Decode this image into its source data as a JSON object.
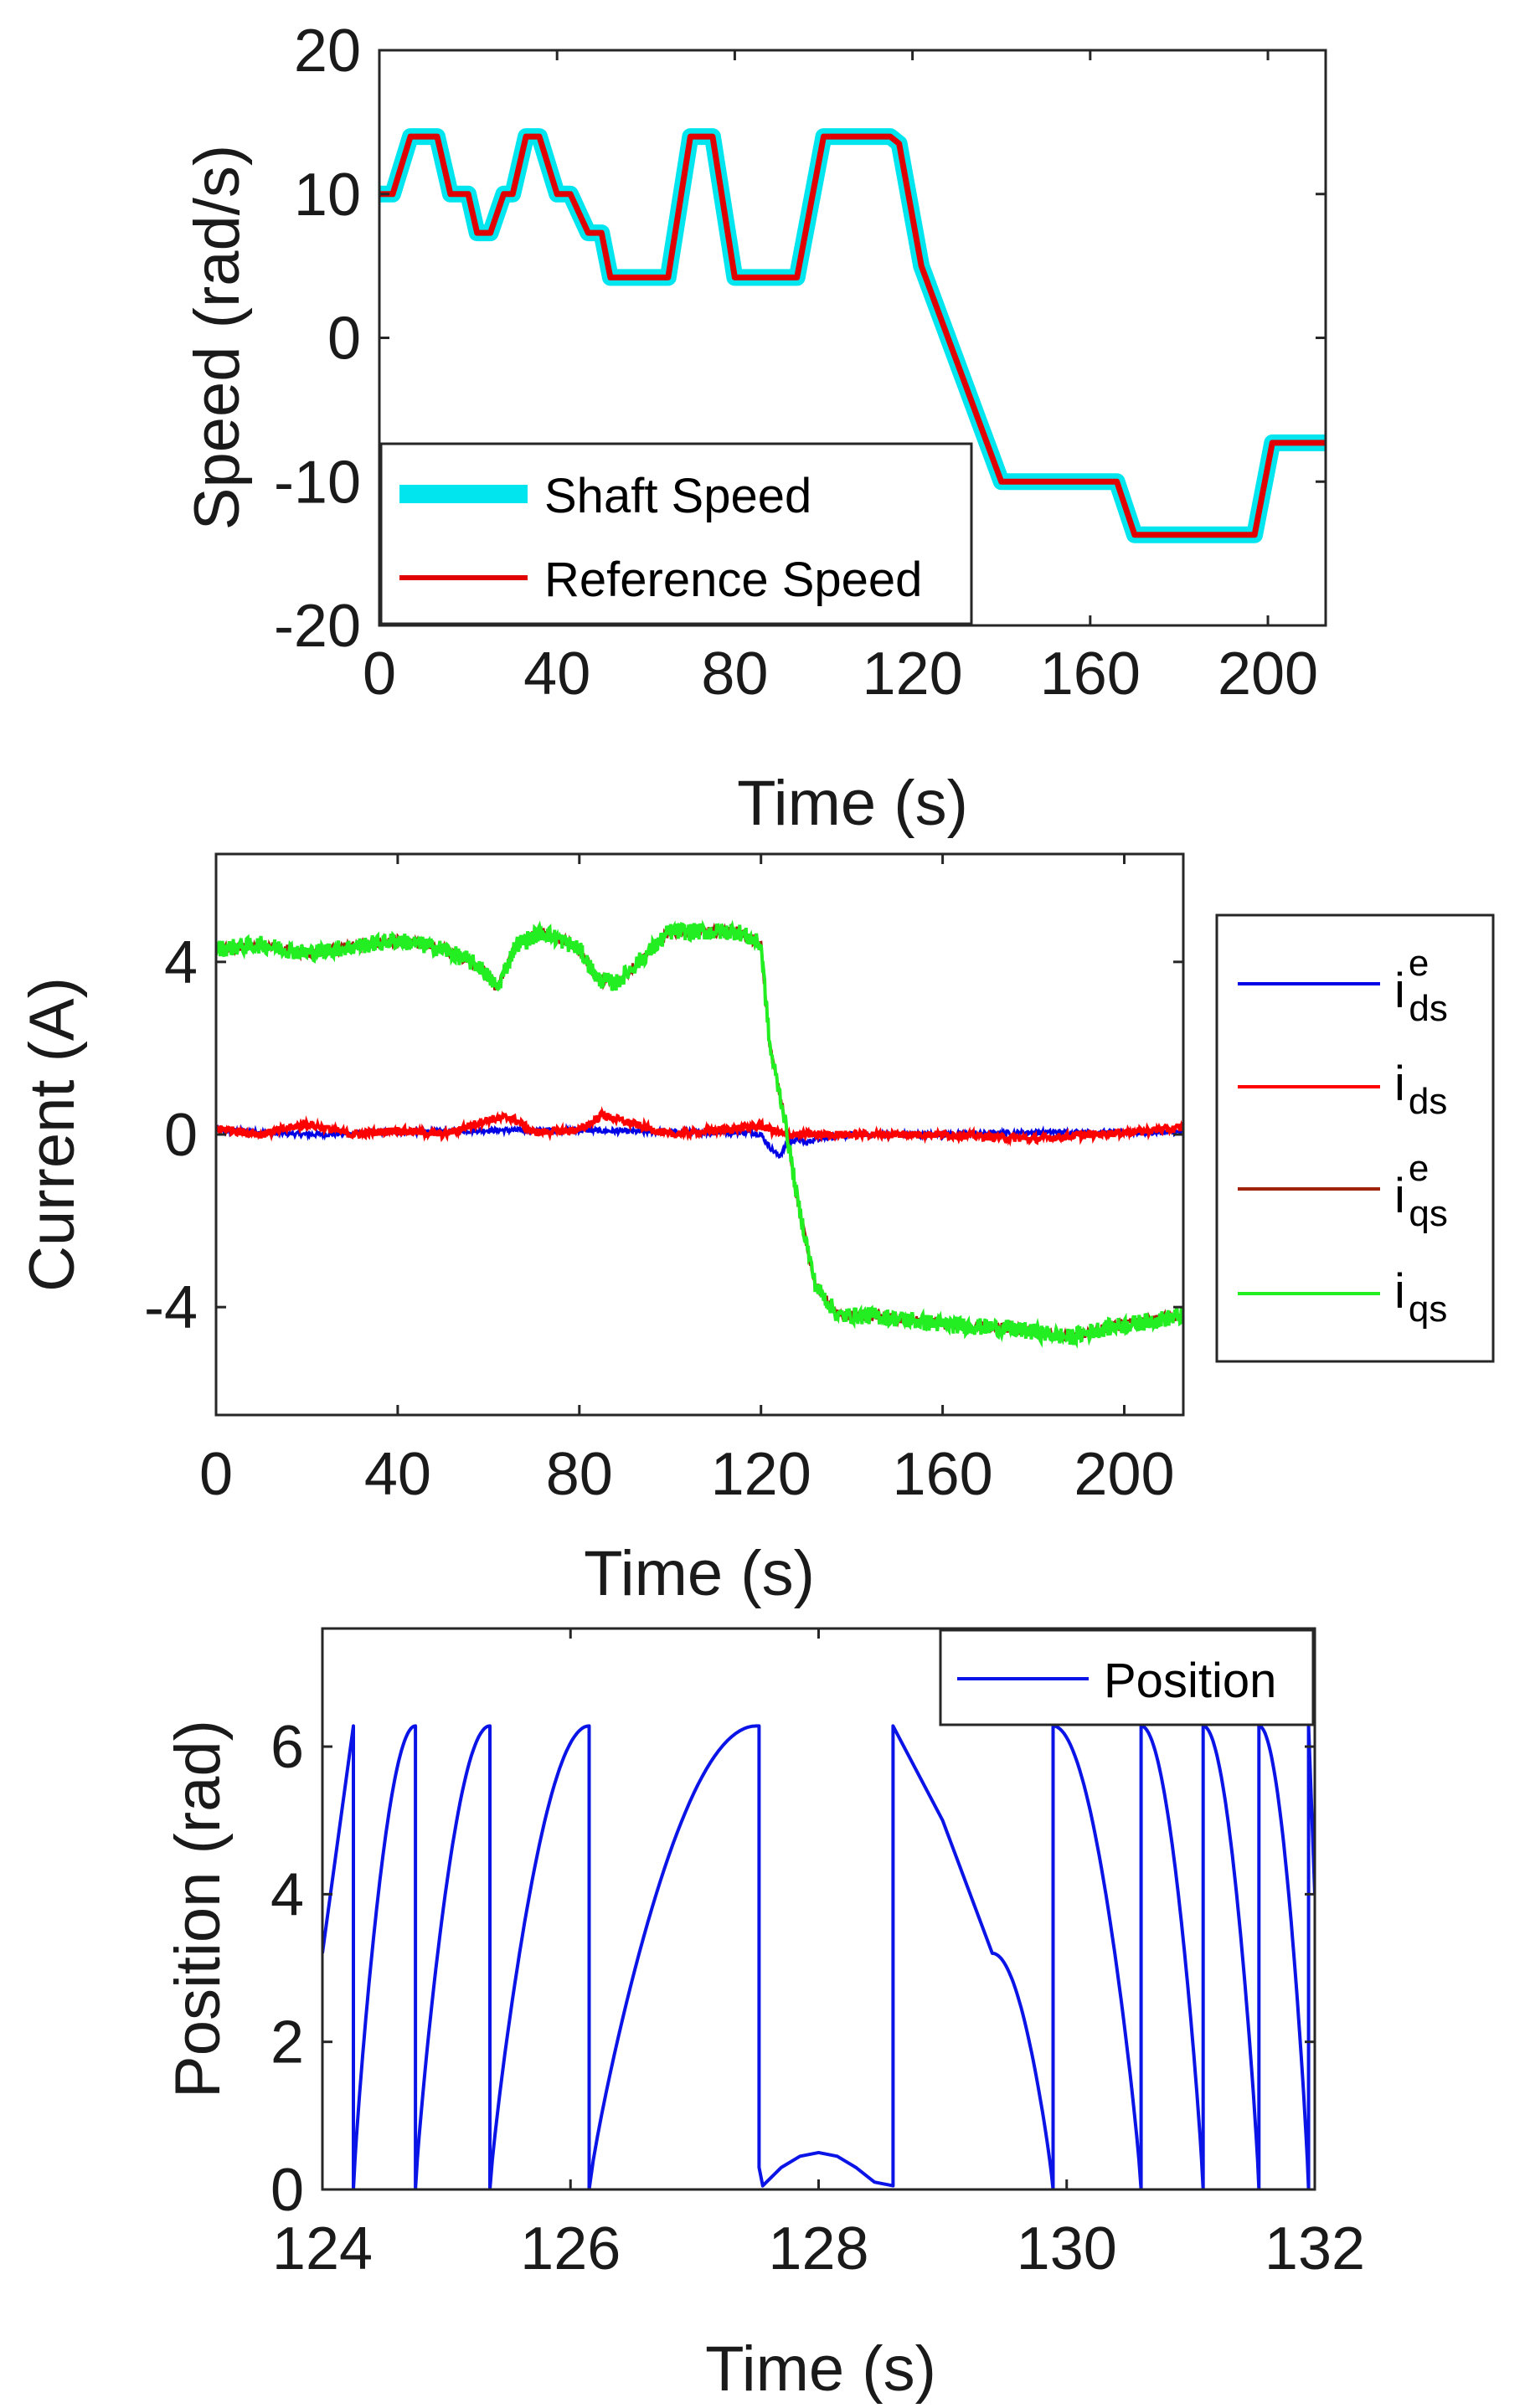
{
  "colors": {
    "shaft_speed": "#00e5ee",
    "reference_speed": "#e00000",
    "ids_e": "#0000e6",
    "ids": "#ff0000",
    "iqs_e": "#a0220a",
    "iqs": "#22ee22",
    "position": "#0a14e6"
  },
  "chart_data": [
    {
      "type": "line",
      "name": "speed",
      "xlabel": "Time (s)",
      "ylabel": "Speed (rad/s)",
      "xlim": [
        0,
        213
      ],
      "ylim": [
        -20,
        20
      ],
      "xticks": [
        0,
        40,
        80,
        120,
        160,
        200
      ],
      "yticks": [
        -20,
        -10,
        0,
        10,
        20
      ],
      "legend_position": "bottom-left",
      "series": [
        {
          "name": "Shaft Speed",
          "x": [
            0,
            3,
            7,
            13,
            16,
            20,
            22,
            25,
            28,
            30,
            33,
            36,
            40,
            43,
            47,
            50,
            52,
            55,
            57,
            59,
            62,
            65,
            70,
            75,
            80,
            83,
            90,
            94,
            100,
            115,
            117,
            122,
            140,
            166,
            170,
            197,
            201,
            213
          ],
          "y": [
            10,
            10,
            14,
            14,
            10,
            10,
            7.3,
            7.3,
            10,
            10,
            14,
            14,
            10,
            10,
            7.3,
            7.3,
            4.2,
            4.2,
            4.2,
            4.2,
            4.2,
            4.2,
            14,
            14,
            4.2,
            4.2,
            4.2,
            4.2,
            14,
            14,
            13.5,
            5,
            -10,
            -10,
            -13.7,
            -13.7,
            -7.3,
            -7.3
          ]
        },
        {
          "name": "Reference Speed",
          "x": [
            0,
            3,
            7,
            13,
            16,
            20,
            22,
            25,
            28,
            30,
            33,
            36,
            40,
            43,
            47,
            50,
            52,
            55,
            57,
            59,
            62,
            65,
            70,
            75,
            80,
            83,
            90,
            94,
            100,
            115,
            117,
            122,
            140,
            166,
            170,
            197,
            201,
            213
          ],
          "y": [
            10,
            10,
            14,
            14,
            10,
            10,
            7.3,
            7.3,
            10,
            10,
            14,
            14,
            10,
            10,
            7.3,
            7.3,
            4.2,
            4.2,
            4.2,
            4.2,
            4.2,
            4.2,
            14,
            14,
            4.2,
            4.2,
            4.2,
            4.2,
            14,
            14,
            13.5,
            5,
            -10,
            -10,
            -13.7,
            -13.7,
            -7.3,
            -7.3
          ]
        }
      ]
    },
    {
      "type": "line",
      "name": "current",
      "xlabel": "Time (s)",
      "ylabel": "Current (A)",
      "xlim": [
        0,
        213
      ],
      "ylim": [
        -6.5,
        6.5
      ],
      "xticks": [
        0,
        40,
        80,
        120,
        160,
        200
      ],
      "yticks": [
        -4,
        0,
        4
      ],
      "legend_position": "outside-right",
      "legend": [
        {
          "base": "i",
          "sup": "e",
          "sub": "ds"
        },
        {
          "base": "i",
          "sup": "",
          "sub": "ds"
        },
        {
          "base": "i",
          "sup": "e",
          "sub": "qs"
        },
        {
          "base": "i",
          "sup": "",
          "sub": "qs"
        }
      ],
      "series": [
        {
          "name": "ids_e",
          "x": [
            0,
            20,
            40,
            60,
            80,
            100,
            118,
            120,
            122,
            124,
            126,
            128,
            130,
            132,
            140,
            160,
            180,
            200,
            213
          ],
          "y": [
            0.1,
            0.0,
            0.05,
            0.1,
            0.1,
            0.05,
            0.05,
            0.0,
            -0.3,
            -0.5,
            -0.2,
            -0.1,
            -0.2,
            -0.1,
            0.0,
            0.0,
            0.05,
            0.05,
            0.05
          ]
        },
        {
          "name": "ids",
          "x": [
            0,
            10,
            20,
            30,
            40,
            50,
            60,
            65,
            70,
            80,
            85,
            90,
            100,
            110,
            120,
            125,
            130,
            140,
            160,
            180,
            200,
            213
          ],
          "y": [
            0.15,
            0.0,
            0.25,
            0.0,
            0.1,
            0.0,
            0.35,
            0.4,
            0.05,
            0.1,
            0.45,
            0.3,
            0.0,
            0.1,
            0.2,
            0.0,
            0.0,
            0.0,
            0.0,
            -0.1,
            0.05,
            0.15
          ]
        },
        {
          "name": "iqs_e",
          "x": [
            0,
            10,
            20,
            40,
            50,
            58,
            62,
            66,
            72,
            80,
            84,
            88,
            92,
            100,
            115,
            120,
            122,
            125,
            128,
            132,
            137,
            145,
            160,
            175,
            188,
            195,
            213
          ],
          "y": [
            4.3,
            4.4,
            4.2,
            4.5,
            4.3,
            3.9,
            3.4,
            4.4,
            4.7,
            4.3,
            3.6,
            3.5,
            3.9,
            4.7,
            4.7,
            4.4,
            2.0,
            0.5,
            -1.5,
            -3.5,
            -4.2,
            -4.2,
            -4.4,
            -4.5,
            -4.7,
            -4.5,
            -4.2
          ]
        },
        {
          "name": "iqs",
          "x": [
            0,
            10,
            20,
            40,
            50,
            58,
            62,
            66,
            72,
            80,
            84,
            88,
            92,
            100,
            115,
            120,
            122,
            125,
            128,
            132,
            137,
            145,
            160,
            175,
            188,
            195,
            213
          ],
          "y": [
            4.3,
            4.4,
            4.2,
            4.5,
            4.3,
            3.9,
            3.4,
            4.4,
            4.7,
            4.3,
            3.6,
            3.5,
            3.9,
            4.7,
            4.7,
            4.4,
            2.0,
            0.5,
            -1.5,
            -3.5,
            -4.2,
            -4.2,
            -4.4,
            -4.5,
            -4.7,
            -4.5,
            -4.2
          ]
        }
      ]
    },
    {
      "type": "line",
      "name": "position",
      "xlabel": "Time (s)",
      "ylabel": "Position (rad)",
      "xlim": [
        124,
        132
      ],
      "ylim": [
        0,
        7.6
      ],
      "xticks": [
        124,
        126,
        128,
        130,
        132
      ],
      "yticks": [
        0,
        2,
        4,
        6
      ],
      "legend_position": "top-right",
      "series": [
        {
          "name": "Position",
          "x": [
            124,
            124.25,
            124.25,
            124.75,
            124.75,
            125.35,
            125.35,
            126.15,
            126.15,
            127.5,
            127.52,
            127.52,
            127.55,
            127.55,
            127.7,
            127.85,
            128.0,
            128.15,
            128.3,
            128.45,
            128.6,
            128.6,
            128.6,
            129.0,
            129.4,
            129.89,
            129.89,
            130.6,
            130.6,
            131.1,
            131.1,
            131.55,
            131.55,
            131.95,
            131.95,
            132
          ],
          "y": [
            3.2,
            6.28,
            0,
            6.28,
            0,
            6.28,
            0,
            6.28,
            0,
            6.28,
            6.28,
            0.3,
            0.05,
            0.05,
            0.3,
            0.45,
            0.5,
            0.45,
            0.3,
            0.1,
            0.05,
            0.05,
            6.28,
            5.0,
            3.2,
            0,
            6.28,
            0,
            6.28,
            0,
            6.28,
            0,
            6.28,
            0,
            6.28,
            4.0
          ]
        }
      ]
    }
  ]
}
